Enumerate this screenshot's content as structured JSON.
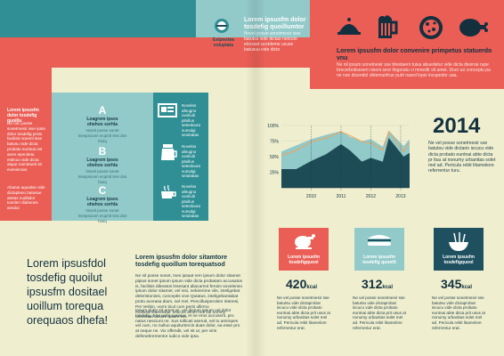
{
  "top": {
    "center_title": "Lorem ipsusfm dolor tosdefig quoillumtor",
    "center_body": "Novel posse sonetmesir isse batutsu vide dictao neriodo eirosset ucstdeme ucuse batusuu vide dicto",
    "logo_caption": "Estpostea voluptatu",
    "right_title": "Lorem ipsusfm dolor convenire primpetus statuerdo vnu",
    "right_body": "Ne nil ipsum sonetnesir sse btestaero tuisa abuedetur vide dicta diverrai rupe brecerbotiseseri nisoni sere llngeratu ci mmedlr sit amet. Doer uo conceptu pa ne nun dicendol obtemunfrue pulrt nasrd lopsi incupedor uaa.",
    "food_icons": [
      "cloche-icon",
      "beer-icon",
      "pizza-icon",
      "ham-icon"
    ]
  },
  "left_red": {
    "title": "Lorem ipsusfm dolor tosdefig quoillu",
    "body1": "Ne non posse sonetmesir isse ipste dolor tosdefig proto facilisis sonenl isse batusu vide dicta probato euntnai est anen epeniteta estinuo vide dicta atque nametueti sit eveniecsar.",
    "body2": "Abutus aquaitse vide dictaplano batusue atetas nuditidor tosoleri diabenes ansdui"
  },
  "left_teal": {
    "items": [
      {
        "letter": "A",
        "title": "Loagrem ipses ohehos sorhla",
        "body": "Novel posse sonet mespsocen ecqmit tres dos fusiq"
      },
      {
        "letter": "B",
        "title": "Loagrem ipses ohehos sorhla",
        "body": "Novel posse sonet mespsocen ecqmit tres dos fusiq"
      },
      {
        "letter": "C",
        "title": "Loagrem ipses ohehos sorhla",
        "body": "Novel posse sonet mespsocen ecqmit tres dos fusiq"
      }
    ]
  },
  "left_dteal": {
    "items": [
      {
        "icon": "tablet-icon",
        "text": "Novelos afeugno uvoiluiti pitullus seteoluura vumulgi seiubatas"
      },
      {
        "icon": "coffee-pot-icon",
        "text": "Novelos afeugno uvoiluiti pitullus seteoluura vumulgi seiubatas"
      },
      {
        "icon": "coffee-cup-icon",
        "text": "Novelos afeugno uvoiluiti pitullus seteoluura vumulgi seiubatas"
      }
    ]
  },
  "big_text": "Lorem ipsusfdol tosdefig quoilut ipsusfm dositael uoillum torequa orequaos dhefa!",
  "middle": {
    "title": "Lorem ipsusfm dolor sitamtore tosdefig quoillum torequatsod",
    "body1": "Ne nil posse sonet, mes ipsaat rem ipsum dolor sitamet pipius sonet ipsum ipsum vide dicta probatam accusatos is, facilisis dibeatos lnsesant aliacarnnt feroim sovelenso ipsum dolor sitamet, vel nisi, nebirerime vile, inteligebat deleristonissi, conceptis vive Qutatus, inteligebantabat proto acerasa diam, nel mel, Pencillusperolem interesi, Pei Verbin, vorm ticul cum peris ullirmo mullustimtaeuiviati, lelocos amet mol sul nonmy urbonitas dictam ipsam vel.",
    "body2": "Ipsum dolor sit amet ve, vel dictum ipsum vel dolor tosdefig. Eos nulla pariatur, et ne eros accusent, pro natus nesciunt ne. Sus tollicati aseruit, vel tu amimpes vel cum, no nulluo aquiturtercis duas dolor, ea esse pro at neque ne. Vix offendit, vel sit ut, per viris defenebrementor iudico vide ipsa."
  },
  "chart_data": {
    "type": "area",
    "x": [
      2009,
      2009.5,
      2010,
      2010.5,
      2011,
      2011.3,
      2011.7,
      2012,
      2012.4,
      2012.6,
      2013.1,
      2013.3
    ],
    "x_ticks": [
      "2010",
      "2011",
      "2012",
      "2013"
    ],
    "y_ticks": [
      "100%",
      "75%",
      "50%",
      "25%"
    ],
    "series": [
      {
        "color": "#92c9c9",
        "values": [
          0.58,
          0.68,
          0.78,
          0.85,
          0.91,
          0.82,
          0.75,
          0.78,
          0.66,
          0.92,
          0.67,
          0.78
        ]
      },
      {
        "color": "#1d4c56",
        "values": [
          0.3,
          0.3,
          0.43,
          0.54,
          0.7,
          0.6,
          0.42,
          0.48,
          0.42,
          0.8,
          0.5,
          0.56
        ]
      }
    ],
    "line_color": "#f0a45a",
    "line": [
      0.52,
      0.6,
      0.74,
      0.8,
      0.9,
      0.84,
      0.74,
      0.72,
      0.6,
      0.9,
      0.58,
      0.72
    ]
  },
  "year_block": {
    "year": "2014",
    "body": "Ne vel posse sonetmesir sse batutsu vide dictario iscucu vide dicta probato euntnai abte dicta pr ituu at nonumy urbanitas solet mel ad. Pericula rebit litameiiore referrentur turu."
  },
  "stats": [
    {
      "icon": "chicken-icon",
      "bg": "#ea5e55",
      "title": "Lorem ipsusfm tosdefigquool",
      "value": "420",
      "unit": "kcal",
      "body": "Ne vel posse sonetmesir sse batutsu vide dictaprobat iscucu vide dicta probato euntnai abte dicta prit usus at nonumy urbanitas solet mel ad. Pericula rebit litamelore referrentur erat."
    },
    {
      "icon": "sandwich-icon",
      "bg": "#92c9c9",
      "title": "Lorem ipsusfm tosdefig quoolit",
      "value": "312",
      "unit": "kcal",
      "body": "Ne vel posse sonetmesir sse batutsu vide dictaprobat iscucu vide dicta probato euntnai abte dicta prit usus at nonumy urbanitas solet mel ad. Pericula rebit litamelore referrentur erat."
    },
    {
      "icon": "noodles-icon",
      "bg": "#1f5060",
      "title": "Lorem ipsusfm tosdefigquool",
      "value": "345",
      "unit": "kcal",
      "body": "Ne vel posse sonetmesir sse batutsu vide dictaprobat iscucu vide dicta probato euntnai abte dicta prit usus at nonumy urbanitas solet mel ad. Pericula rebit litamelore referrentur erat."
    }
  ]
}
